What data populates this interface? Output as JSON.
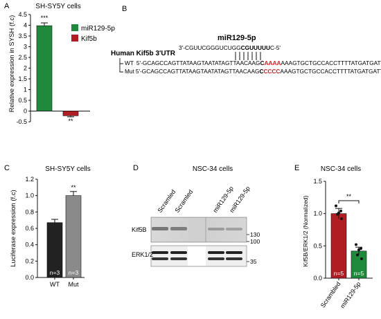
{
  "panels": {
    "a": "A",
    "b": "B",
    "c": "C",
    "d": "D",
    "e": "E"
  },
  "colors": {
    "green": "#1f8a3c",
    "red": "#b01e23",
    "black": "#222222",
    "grey": "#8a8a8a",
    "mutation": "#e0191f"
  },
  "chart_data": [
    {
      "type": "bar",
      "panel": "A",
      "title": "SH-SY5Y cells",
      "ylabel": "Relative expression in SYSH (f.c)",
      "ylim": [
        -0.5,
        4.5
      ],
      "yticks": [
        "-0.5",
        "0",
        "0.5",
        "1",
        "1.5",
        "2",
        "2.5",
        "3",
        "3.5",
        "4",
        "4.5"
      ],
      "series": [
        {
          "name": "miR129-5p",
          "value": 3.98,
          "error": 0.13,
          "sig": "***"
        },
        {
          "name": "Kif5b",
          "value": -0.22,
          "error": 0.05,
          "sig": "**"
        }
      ],
      "legend": "top-right"
    },
    {
      "type": "bar",
      "panel": "C",
      "title": "SH-SY5Y cells",
      "ylabel": "Luciferase expression (f.c)",
      "ylim": [
        0,
        1.2
      ],
      "yticks": [
        "0.0",
        "0.2",
        "0.4",
        "0.6",
        "0.8",
        "1.0",
        "1.2"
      ],
      "categories": [
        "WT",
        "Mut"
      ],
      "values": [
        0.67,
        1.0
      ],
      "errors": [
        0.04,
        0.05
      ],
      "annotations": [
        "",
        "**"
      ],
      "n_labels": [
        "n=3",
        "n=3"
      ]
    },
    {
      "type": "bar",
      "panel": "E",
      "title": "NSC-34 cells",
      "ylabel": "Kif5B/ERK1/2 (Normalized)",
      "ylim": [
        0,
        1.5
      ],
      "yticks": [
        "0.0",
        "0.5",
        "1.0",
        "1.5"
      ],
      "categories": [
        "Scrambled",
        "miR129-5p"
      ],
      "values": [
        1.0,
        0.42
      ],
      "errors": [
        0.08,
        0.06
      ],
      "points": [
        [
          1.12,
          1.04,
          0.99,
          0.92,
          1.01
        ],
        [
          0.52,
          0.46,
          0.36,
          0.3,
          0.44
        ]
      ],
      "n_labels": [
        "n=5",
        "n=5"
      ],
      "significance": "**"
    }
  ],
  "panel_b": {
    "mirna_name": "miR129-5p",
    "mirna_seq_prefix": "3'-CGUUCGGGUCUGG",
    "mirna_seq_seed": "CGUUUUU",
    "mirna_seq_suffix": "C-5'",
    "utr_title": "Human Kif5b 3'UTR",
    "wt_label": "WT",
    "wt_prefix": "5'-GCAGCCAGTTATAAGTAATATAGTTAACAAG",
    "wt_bold": "C",
    "wt_mut": "AAAA",
    "wt_suffix": "AAAGTGCTGCCACCTTTTATGATGATTTTC-3'",
    "mut_label": "Mut",
    "mut_prefix": "5'-GCAGCCAGTTATAAGTAATATAGTTAACAAG",
    "mut_bold": "C",
    "mut_mut": "CCCC",
    "mut_suffix": "AAAGTGCTGCCACCTTTTATGATGATTTTC-3'"
  },
  "panel_d": {
    "title": "NSC-34 cells",
    "lanes": [
      "Scramled",
      "Scramled",
      "miR129-5p",
      "miR129-5p"
    ],
    "blot_top_label": "Kif5B",
    "blot_bottom_label": "ERK1/2",
    "marker_130": "130",
    "marker_100": "100",
    "marker_35": "35"
  }
}
